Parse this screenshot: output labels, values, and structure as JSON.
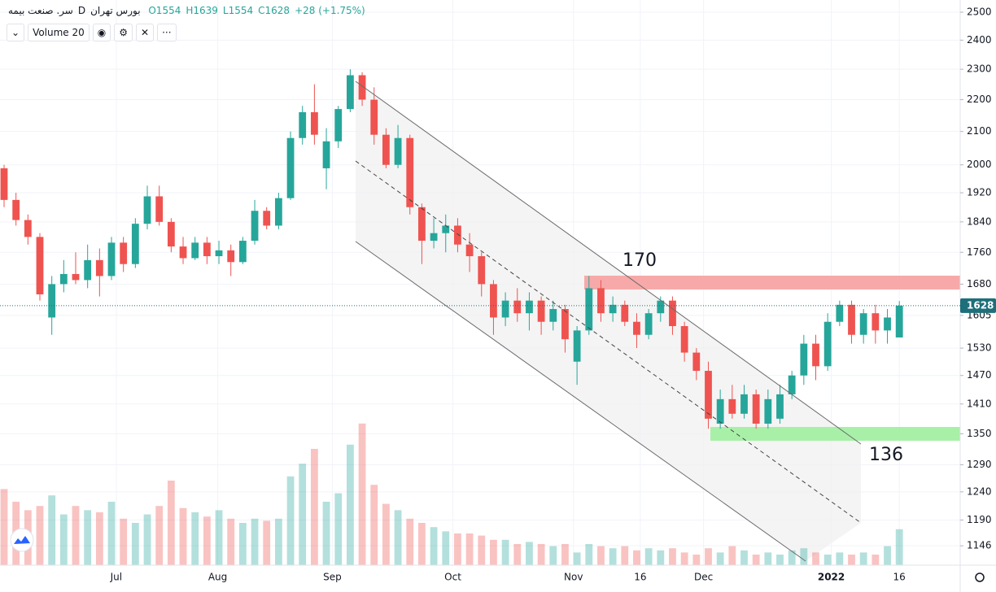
{
  "chart_data": {
    "type": "candlestick",
    "symbol": "سر. صنعت بیمه",
    "interval": "D",
    "exchange": "بورس تهران",
    "ohlc_labels": [
      "O1554",
      "H1639",
      "L1554",
      "C1628"
    ],
    "change": "+28 (+1.75%)",
    "volume_label": "Volume 20",
    "annotations": [
      "170",
      "136"
    ],
    "last_price": 1628,
    "log_scale": true,
    "grid": true,
    "up_color": "#26a69a",
    "down_color": "#ef5350",
    "ylim": [
      1114,
      2545
    ],
    "yticks": [
      2500,
      2400,
      2300,
      2200,
      2100,
      2000,
      1920,
      1840,
      1760,
      1680,
      1605,
      1530,
      1470,
      1410,
      1350,
      1290,
      1240,
      1190,
      1146
    ],
    "xlim": [
      -0.34,
      80.1
    ],
    "xticks": [
      {
        "value": 9.4,
        "label": "Jul"
      },
      {
        "value": 17.9,
        "label": "Aug"
      },
      {
        "value": 27.5,
        "label": "Sep"
      },
      {
        "value": 37.6,
        "label": "Oct"
      },
      {
        "value": 47.7,
        "label": "Nov"
      },
      {
        "value": 53.3,
        "label": "16"
      },
      {
        "value": 58.6,
        "label": "Dec"
      },
      {
        "value": 69.3,
        "label": "2022"
      },
      {
        "value": 75,
        "label": "16"
      }
    ],
    "vlim": [
      0,
      100
    ],
    "open": [
      1990,
      1900,
      1845,
      1800,
      1600,
      1680,
      1705,
      1690,
      1740,
      1700,
      1785,
      1730,
      1835,
      1910,
      1840,
      1775,
      1745,
      1785,
      1750,
      1765,
      1735,
      1790,
      1870,
      1830,
      1905,
      2080,
      2160,
      1990,
      2070,
      2170,
      2280,
      2200,
      2090,
      2000,
      2080,
      1880,
      1790,
      1810,
      1830,
      1780,
      1750,
      1680,
      1600,
      1640,
      1610,
      1640,
      1590,
      1620,
      1500,
      1570,
      1670,
      1610,
      1630,
      1590,
      1560,
      1610,
      1640,
      1580,
      1520,
      1480,
      1370,
      1420,
      1390,
      1430,
      1370,
      1380,
      1430,
      1470,
      1540,
      1490,
      1590,
      1630,
      1560,
      1610,
      1570,
      1554
    ],
    "high": [
      2000,
      1920,
      1860,
      1810,
      1700,
      1740,
      1760,
      1780,
      1770,
      1800,
      1800,
      1850,
      1940,
      1940,
      1850,
      1800,
      1800,
      1800,
      1790,
      1780,
      1800,
      1900,
      1880,
      1920,
      2100,
      2180,
      2250,
      2110,
      2180,
      2300,
      2290,
      2240,
      2110,
      2120,
      2090,
      1890,
      1850,
      1860,
      1850,
      1810,
      1760,
      1690,
      1660,
      1670,
      1660,
      1650,
      1640,
      1630,
      1580,
      1700,
      1690,
      1650,
      1640,
      1610,
      1620,
      1650,
      1650,
      1590,
      1530,
      1500,
      1440,
      1450,
      1450,
      1440,
      1440,
      1450,
      1480,
      1560,
      1560,
      1610,
      1640,
      1640,
      1620,
      1630,
      1620,
      1639
    ],
    "low": [
      1880,
      1830,
      1780,
      1640,
      1560,
      1660,
      1680,
      1670,
      1650,
      1690,
      1710,
      1720,
      1820,
      1830,
      1760,
      1730,
      1740,
      1730,
      1730,
      1700,
      1730,
      1780,
      1820,
      1820,
      1900,
      2060,
      2060,
      1930,
      2050,
      2160,
      2180,
      2060,
      1990,
      1990,
      1860,
      1730,
      1770,
      1760,
      1760,
      1710,
      1650,
      1560,
      1580,
      1590,
      1570,
      1560,
      1570,
      1520,
      1450,
      1560,
      1590,
      1590,
      1580,
      1530,
      1550,
      1590,
      1560,
      1500,
      1460,
      1360,
      1360,
      1380,
      1380,
      1360,
      1360,
      1370,
      1420,
      1450,
      1460,
      1480,
      1580,
      1540,
      1540,
      1540,
      1540,
      1554
    ],
    "close": [
      1900,
      1845,
      1800,
      1655,
      1680,
      1705,
      1690,
      1740,
      1700,
      1785,
      1730,
      1835,
      1910,
      1840,
      1775,
      1745,
      1785,
      1750,
      1765,
      1735,
      1790,
      1870,
      1830,
      1905,
      2080,
      2160,
      2090,
      2070,
      2170,
      2280,
      2200,
      2090,
      2000,
      2080,
      1880,
      1790,
      1810,
      1830,
      1780,
      1750,
      1680,
      1600,
      1640,
      1610,
      1640,
      1590,
      1620,
      1550,
      1570,
      1670,
      1610,
      1630,
      1590,
      1560,
      1610,
      1640,
      1580,
      1520,
      1480,
      1380,
      1420,
      1390,
      1430,
      1370,
      1420,
      1430,
      1470,
      1540,
      1490,
      1590,
      1630,
      1560,
      1610,
      1570,
      1600,
      1628
    ],
    "volume": [
      36,
      30,
      26,
      28,
      33,
      24,
      28,
      26,
      25,
      30,
      22,
      20,
      24,
      28,
      40,
      27,
      25,
      23,
      26,
      22,
      20,
      22,
      21,
      22,
      42,
      48,
      55,
      30,
      34,
      57,
      67,
      38,
      29,
      26,
      22,
      20,
      18,
      16,
      15,
      15,
      14,
      12,
      12,
      10,
      11,
      10,
      9,
      10,
      6,
      10,
      9,
      8,
      9,
      7,
      8,
      7,
      8,
      6,
      5,
      8,
      6,
      9,
      7,
      5,
      6,
      5,
      7,
      8,
      6,
      5,
      6,
      5,
      6,
      5,
      9,
      17
    ]
  }
}
